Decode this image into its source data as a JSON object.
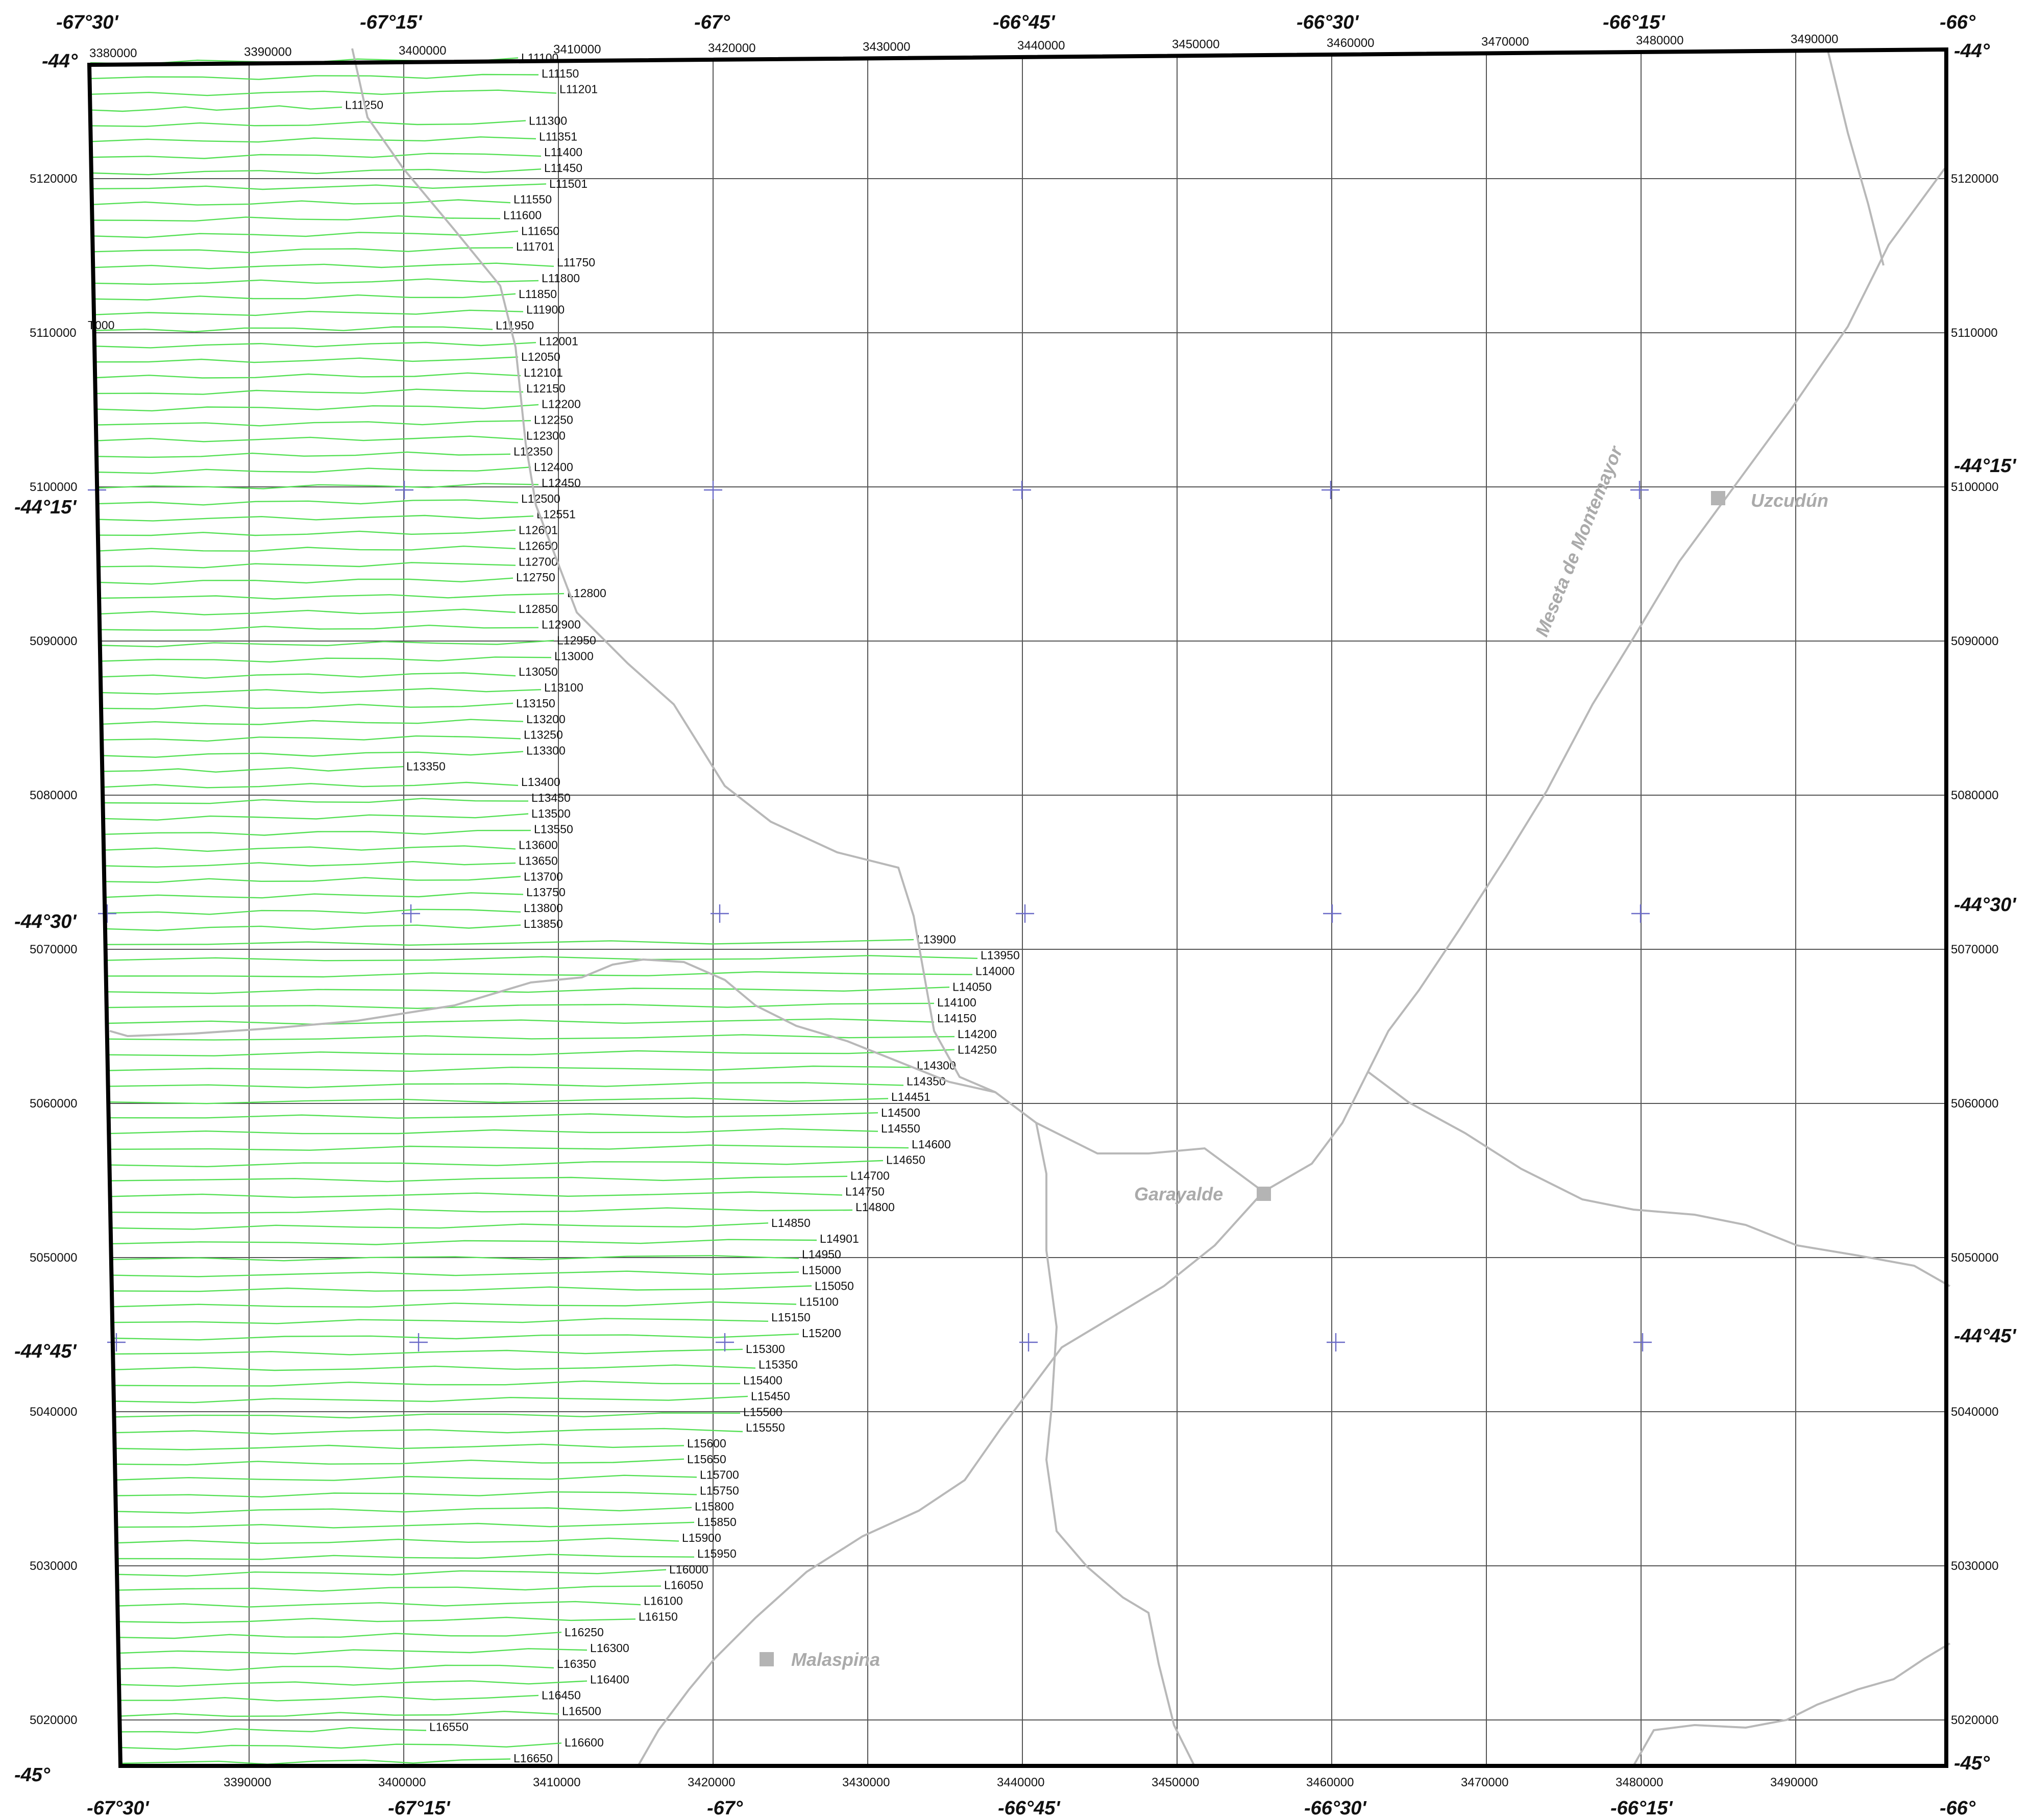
{
  "colors": {
    "flight_line": "#55e055",
    "road": "#b8b8b8",
    "town": "#aaaaaa",
    "graticule_cross": "#6c6cc8",
    "grid": "#555555"
  },
  "grid": {
    "easting_top": [
      "3380000",
      "3390000",
      "3400000",
      "3410000",
      "3420000",
      "3430000",
      "3440000",
      "3450000",
      "3460000",
      "3470000",
      "3480000",
      "3490000"
    ],
    "easting_bottom": [
      "3390000",
      "3400000",
      "3410000",
      "3420000",
      "3430000",
      "3440000",
      "3450000",
      "3460000",
      "3470000",
      "3480000",
      "3490000"
    ],
    "northing": [
      "5120000",
      "5110000",
      "5100000",
      "5090000",
      "5080000",
      "5070000",
      "5060000",
      "5050000",
      "5040000",
      "5030000",
      "5020000"
    ]
  },
  "geo": {
    "lon_top": [
      "-67°30'",
      "-67°15'",
      "-67°",
      "-66°45'",
      "-66°30'",
      "-66°15'",
      "-66°"
    ],
    "lon_bottom": [
      "-67°30'",
      "-67°15'",
      "-67°",
      "-66°45'",
      "-66°30'",
      "-66°15'",
      "-66°"
    ],
    "lat_left": [
      "-44°",
      "-44°15'",
      "-44°30'",
      "-44°45'",
      "-45°"
    ],
    "lat_right": [
      "-44°",
      "-44°15'",
      "-44°30'",
      "-44°45'",
      "-45°"
    ]
  },
  "places": [
    {
      "name": "Uzcudún"
    },
    {
      "name": "Garayalde"
    },
    {
      "name": "Malaspina"
    }
  ],
  "road_label": "Meseta de Montemayor",
  "flight_lines": {
    "labels": [
      "L11100",
      "L11150",
      "L11201",
      "L11250",
      "L11300",
      "L11351",
      "L11400",
      "L11450",
      "L11501",
      "L11550",
      "L11600",
      "L11650",
      "L11701",
      "L11750",
      "L11800",
      "L11850",
      "L11900",
      "L11950",
      "L12001",
      "L12050",
      "L12101",
      "L12150",
      "L12200",
      "L12250",
      "L12300",
      "L12350",
      "L12400",
      "L12450",
      "L12500",
      "L12551",
      "L12601",
      "L12650",
      "L12700",
      "L12750",
      "L12800",
      "L12850",
      "L12900",
      "L12950",
      "L13000",
      "L13050",
      "L13100",
      "L13150",
      "L13200",
      "L13250",
      "L13300",
      "L13350",
      "L13400",
      "L13450",
      "L13500",
      "L13550",
      "L13600",
      "L13650",
      "L13700",
      "L13750",
      "L13800",
      "L13850",
      "L13900",
      "L13950",
      "L14000",
      "L14050",
      "L14100",
      "L14150",
      "L14200",
      "L14250",
      "L14300",
      "L14350",
      "L14451",
      "L14500",
      "L14550",
      "L14600",
      "L14650",
      "L14700",
      "L14750",
      "L14800",
      "L14850",
      "L14901",
      "L14950",
      "L15000",
      "L15050",
      "L15100",
      "L15150",
      "L15200",
      "L15300",
      "L15350",
      "L15400",
      "L15450",
      "L15500",
      "L15550",
      "L15600",
      "L15650",
      "L15700",
      "L15750",
      "L15800",
      "L15850",
      "L15900",
      "L15950",
      "L16000",
      "L16050",
      "L16100",
      "L16150",
      "L16250",
      "L16300",
      "L16350",
      "L16400",
      "L16450",
      "L16500",
      "L16550",
      "L16600",
      "L16650"
    ],
    "tie_label": "T000"
  }
}
